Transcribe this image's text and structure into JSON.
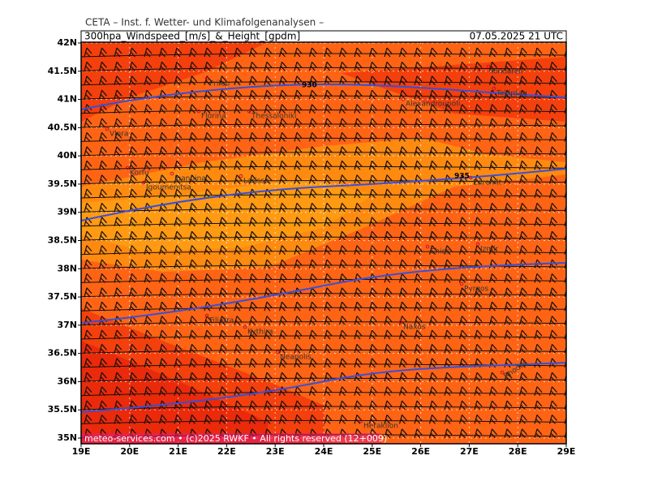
{
  "header": {
    "institute": "CETA – Inst. f. Wetter- und Klimafolgenanalysen –",
    "product": "300hpa_Windspeed_[m/s]_&_Height_[gpdm]",
    "valid": "07.05.2025 21 UTC"
  },
  "map": {
    "lat_ticks": [
      {
        "value": 35,
        "label": "35N"
      },
      {
        "value": 35.5,
        "label": "35.5N"
      },
      {
        "value": 36,
        "label": "36N"
      },
      {
        "value": 36.5,
        "label": "36.5N"
      },
      {
        "value": 37,
        "label": "37N"
      },
      {
        "value": 37.5,
        "label": "37.5N"
      },
      {
        "value": 38,
        "label": "38N"
      },
      {
        "value": 38.5,
        "label": "38.5N"
      },
      {
        "value": 39,
        "label": "39N"
      },
      {
        "value": 39.5,
        "label": "39.5N"
      },
      {
        "value": 40,
        "label": "40N"
      },
      {
        "value": 40.5,
        "label": "40.5N"
      },
      {
        "value": 41,
        "label": "41N"
      },
      {
        "value": 41.5,
        "label": "41.5N"
      },
      {
        "value": 42,
        "label": "42N"
      }
    ],
    "lon_ticks": [
      {
        "value": 19,
        "label": "19E"
      },
      {
        "value": 20,
        "label": "20E"
      },
      {
        "value": 21,
        "label": "21E"
      },
      {
        "value": 22,
        "label": "22E"
      },
      {
        "value": 23,
        "label": "23E"
      },
      {
        "value": 24,
        "label": "24E"
      },
      {
        "value": 25,
        "label": "25E"
      },
      {
        "value": 26,
        "label": "26E"
      },
      {
        "value": 27,
        "label": "27E"
      },
      {
        "value": 28,
        "label": "28E"
      },
      {
        "value": 29,
        "label": "29E"
      }
    ],
    "cities": [
      "Prilep",
      "Florina",
      "Thessaloniki",
      "Vlora",
      "Korfu",
      "Ioannina",
      "Igoumenitsa",
      "Larissa",
      "Alexandroupoli",
      "Tekirdag",
      "Kirklareli",
      "Edremit",
      "Chios",
      "Izmir",
      "Pyrgos",
      "Filiatra",
      "Kythira",
      "Naxos",
      "Neapolis",
      "Rhodos",
      "Heraklion"
    ],
    "contour_labels": [
      "930",
      "935"
    ]
  },
  "footer": "meteo-services.com • (c)2025 RWKF • All rights reserved (12+009)"
}
